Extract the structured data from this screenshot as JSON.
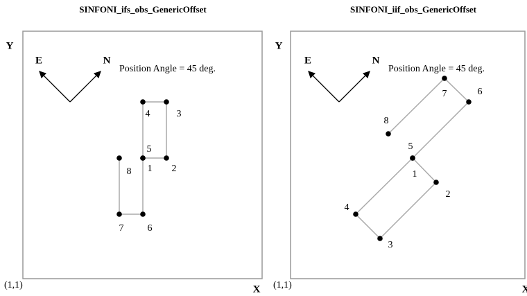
{
  "panels": [
    {
      "title": "SINFONI_ifs_obs_GenericOffset",
      "y_label": "Y",
      "x_label": "X",
      "origin_label": "(1,1)",
      "east": "E",
      "north": "N",
      "position_angle": "Position Angle = 45 deg.",
      "points": [
        {
          "label": "1"
        },
        {
          "label": "2"
        },
        {
          "label": "3"
        },
        {
          "label": "4"
        },
        {
          "label": "5"
        },
        {
          "label": "6"
        },
        {
          "label": "7"
        },
        {
          "label": "8"
        }
      ]
    },
    {
      "title": "SINFONI_iif_obs_GenericOffset",
      "y_label": "Y",
      "x_label": "X",
      "origin_label": "(1,1)",
      "east": "E",
      "north": "N",
      "position_angle": "Position Angle = 45 deg.",
      "points": [
        {
          "label": "1"
        },
        {
          "label": "2"
        },
        {
          "label": "3"
        },
        {
          "label": "4"
        },
        {
          "label": "5"
        },
        {
          "label": "6"
        },
        {
          "label": "7"
        },
        {
          "label": "8"
        }
      ]
    }
  ]
}
